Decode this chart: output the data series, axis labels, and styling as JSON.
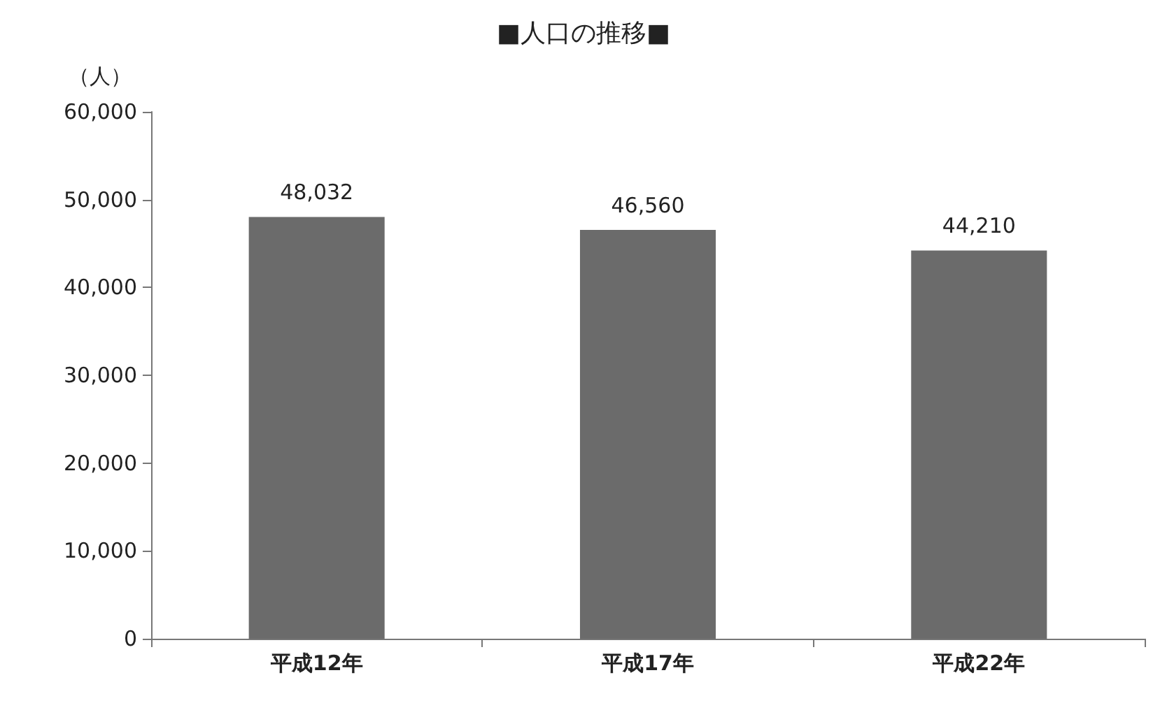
{
  "chart_data": {
    "type": "bar",
    "title": "■人口の推移■",
    "ylabel": "（人）",
    "categories": [
      "平成12年",
      "平成17年",
      "平成22年"
    ],
    "values": [
      48032,
      46560,
      44210
    ],
    "value_labels": [
      "48,032",
      "46,560",
      "44,210"
    ],
    "color": "#6b6b6b",
    "ylim": [
      0,
      60000
    ],
    "yticks": [
      {
        "value": 0,
        "label": "0"
      },
      {
        "value": 10000,
        "label": "10,000"
      },
      {
        "value": 20000,
        "label": "20,000"
      },
      {
        "value": 30000,
        "label": "30,000"
      },
      {
        "value": 40000,
        "label": "40,000"
      },
      {
        "value": 50000,
        "label": "50,000"
      },
      {
        "value": 60000,
        "label": "60,000"
      }
    ],
    "grid": false
  }
}
